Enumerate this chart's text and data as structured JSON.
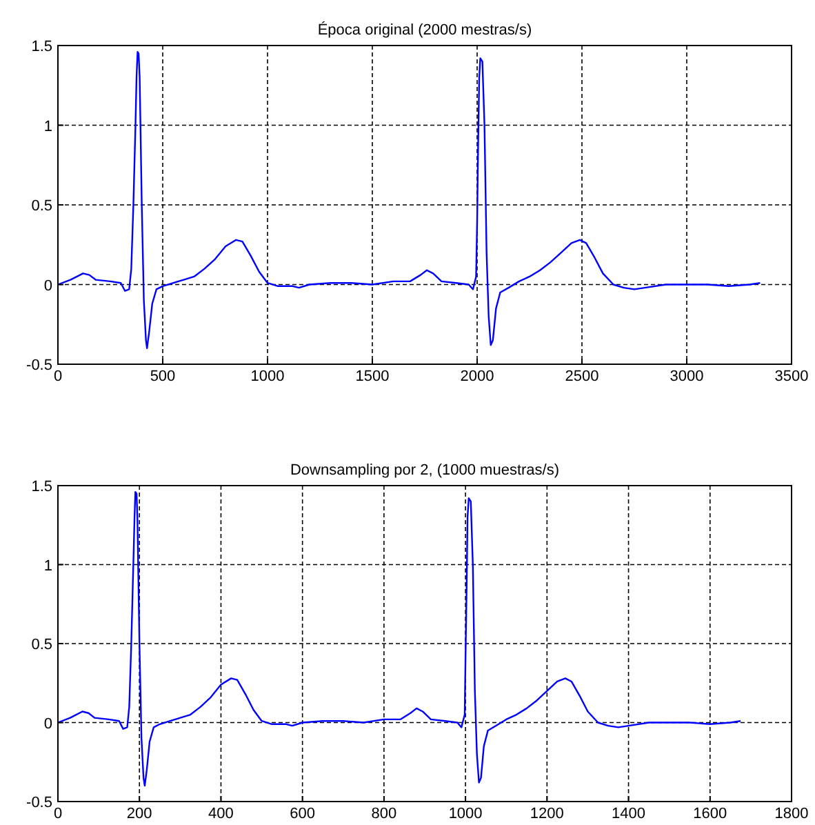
{
  "chart_data": [
    {
      "type": "line",
      "title": "Época original  (2000 mestras/s)",
      "xlim": [
        0,
        3500
      ],
      "ylim": [
        -0.5,
        1.5
      ],
      "xticks": [
        0,
        500,
        1000,
        1500,
        2000,
        2500,
        3000,
        3500
      ],
      "yticks": [
        -0.5,
        0,
        0.5,
        1,
        1.5
      ],
      "grid": true,
      "series": [
        {
          "color": "#0000ff",
          "x": [
            0,
            60,
            120,
            150,
            180,
            250,
            300,
            320,
            340,
            350,
            360,
            370,
            375,
            380,
            385,
            390,
            400,
            410,
            420,
            425,
            435,
            450,
            470,
            500,
            600,
            650,
            700,
            750,
            800,
            850,
            880,
            920,
            960,
            1000,
            1050,
            1120,
            1150,
            1200,
            1300,
            1400,
            1500,
            1600,
            1680,
            1730,
            1760,
            1790,
            1830,
            1900,
            1960,
            1980,
            1995,
            2000,
            2005,
            2010,
            2015,
            2025,
            2035,
            2045,
            2055,
            2065,
            2075,
            2090,
            2110,
            2150,
            2200,
            2250,
            2300,
            2350,
            2400,
            2450,
            2490,
            2520,
            2560,
            2600,
            2650,
            2700,
            2750,
            2800,
            2900,
            3000,
            3100,
            3200,
            3300,
            3350
          ],
          "values": [
            0,
            0.03,
            0.07,
            0.06,
            0.03,
            0.02,
            0.01,
            -0.04,
            -0.03,
            0.1,
            0.5,
            1.0,
            1.3,
            1.46,
            1.45,
            1.3,
            0.5,
            -0.1,
            -0.35,
            -0.4,
            -0.3,
            -0.12,
            -0.03,
            -0.01,
            0.03,
            0.05,
            0.1,
            0.16,
            0.24,
            0.28,
            0.27,
            0.18,
            0.08,
            0.01,
            -0.01,
            -0.01,
            -0.02,
            0,
            0.01,
            0.01,
            0,
            0.02,
            0.02,
            0.06,
            0.09,
            0.07,
            0.02,
            0.01,
            0,
            -0.03,
            0.05,
            0.4,
            0.9,
            1.3,
            1.42,
            1.4,
            1.0,
            0.2,
            -0.2,
            -0.38,
            -0.35,
            -0.15,
            -0.05,
            -0.02,
            0.02,
            0.05,
            0.09,
            0.14,
            0.2,
            0.26,
            0.28,
            0.26,
            0.17,
            0.07,
            0,
            -0.02,
            -0.03,
            -0.02,
            0,
            0,
            0,
            -0.01,
            0,
            0.01
          ]
        }
      ]
    },
    {
      "type": "line",
      "title": "Downsampling por 2, (1000 muestras/s)",
      "xlim": [
        0,
        1800
      ],
      "ylim": [
        -0.5,
        1.5
      ],
      "xticks": [
        0,
        200,
        400,
        600,
        800,
        1000,
        1200,
        1400,
        1600,
        1800
      ],
      "yticks": [
        -0.5,
        0,
        0.5,
        1,
        1.5
      ],
      "grid": true,
      "series": [
        {
          "color": "#0000ff",
          "x": [
            0,
            30,
            60,
            75,
            90,
            125,
            150,
            160,
            170,
            175,
            180,
            185,
            188,
            190,
            193,
            195,
            200,
            205,
            210,
            213,
            218,
            225,
            235,
            250,
            300,
            325,
            350,
            375,
            400,
            425,
            440,
            460,
            480,
            500,
            525,
            560,
            575,
            600,
            650,
            700,
            750,
            800,
            840,
            865,
            880,
            895,
            915,
            950,
            980,
            990,
            998,
            1000,
            1003,
            1005,
            1008,
            1013,
            1018,
            1023,
            1028,
            1033,
            1038,
            1045,
            1055,
            1075,
            1100,
            1125,
            1150,
            1175,
            1200,
            1225,
            1245,
            1260,
            1280,
            1300,
            1325,
            1350,
            1375,
            1400,
            1450,
            1500,
            1550,
            1600,
            1650,
            1675
          ],
          "values": [
            0,
            0.03,
            0.07,
            0.06,
            0.03,
            0.02,
            0.01,
            -0.04,
            -0.03,
            0.1,
            0.5,
            1.0,
            1.3,
            1.46,
            1.45,
            1.3,
            0.5,
            -0.1,
            -0.35,
            -0.4,
            -0.3,
            -0.12,
            -0.03,
            -0.01,
            0.03,
            0.05,
            0.1,
            0.16,
            0.24,
            0.28,
            0.27,
            0.18,
            0.08,
            0.01,
            -0.01,
            -0.01,
            -0.02,
            0,
            0.01,
            0.01,
            0,
            0.02,
            0.02,
            0.06,
            0.09,
            0.07,
            0.02,
            0.01,
            0,
            -0.03,
            0.05,
            0.4,
            0.9,
            1.3,
            1.42,
            1.4,
            1.0,
            0.2,
            -0.2,
            -0.38,
            -0.35,
            -0.15,
            -0.05,
            -0.02,
            0.02,
            0.05,
            0.09,
            0.14,
            0.2,
            0.26,
            0.28,
            0.26,
            0.17,
            0.07,
            0,
            -0.02,
            -0.03,
            -0.02,
            0,
            0,
            0,
            -0.01,
            0,
            0.01
          ]
        }
      ]
    }
  ]
}
